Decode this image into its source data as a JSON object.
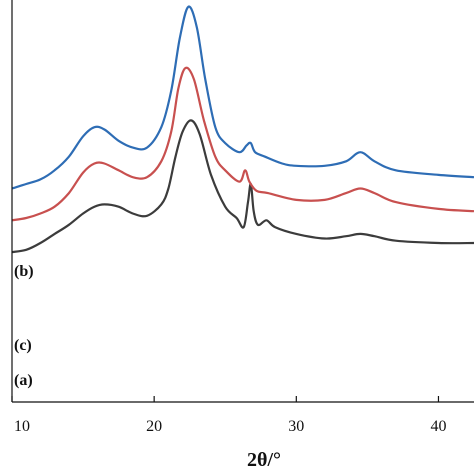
{
  "chart_data": {
    "type": "line",
    "title": "",
    "xlabel": "2θ/°",
    "ylabel": "",
    "xlim": [
      10,
      42.5
    ],
    "ylim": [
      0,
      100
    ],
    "x_ticks": [
      "10",
      "20",
      "30",
      "40"
    ],
    "grid": false,
    "legend": "none",
    "series": [
      {
        "name": "(a)",
        "color": "#3c3c3c",
        "points": [
          [
            10,
            2
          ],
          [
            11,
            3
          ],
          [
            12,
            6
          ],
          [
            13,
            10
          ],
          [
            14,
            14
          ],
          [
            15,
            19
          ],
          [
            15.8,
            22
          ],
          [
            16.5,
            23
          ],
          [
            17.5,
            22
          ],
          [
            18.5,
            19
          ],
          [
            19.5,
            18
          ],
          [
            20.5,
            23
          ],
          [
            21,
            30
          ],
          [
            21.5,
            44
          ],
          [
            22,
            55
          ],
          [
            22.6,
            60
          ],
          [
            23.2,
            54
          ],
          [
            24,
            36
          ],
          [
            25,
            22
          ],
          [
            25.8,
            17
          ],
          [
            26.3,
            13
          ],
          [
            26.6,
            24
          ],
          [
            26.8,
            32
          ],
          [
            27,
            20
          ],
          [
            27.3,
            14
          ],
          [
            27.9,
            16
          ],
          [
            28.5,
            13
          ],
          [
            30,
            10
          ],
          [
            32,
            8
          ],
          [
            33.5,
            9
          ],
          [
            34.5,
            10
          ],
          [
            35.5,
            9
          ],
          [
            37,
            7
          ],
          [
            40,
            6
          ],
          [
            42.5,
            6
          ]
        ]
      },
      {
        "name": "(b)",
        "color": "#2e6db5",
        "points": [
          [
            10,
            30
          ],
          [
            11,
            32
          ],
          [
            12,
            34
          ],
          [
            13,
            38
          ],
          [
            14,
            44
          ],
          [
            15,
            53
          ],
          [
            15.8,
            57
          ],
          [
            16.5,
            56
          ],
          [
            17.5,
            51
          ],
          [
            18.5,
            48
          ],
          [
            19.5,
            48
          ],
          [
            20.5,
            57
          ],
          [
            21.2,
            73
          ],
          [
            21.8,
            96
          ],
          [
            22.4,
            110
          ],
          [
            23,
            101
          ],
          [
            23.6,
            78
          ],
          [
            24.3,
            57
          ],
          [
            25,
            50
          ],
          [
            26,
            46
          ],
          [
            26.5,
            49
          ],
          [
            26.8,
            50
          ],
          [
            27.1,
            46
          ],
          [
            27.8,
            44
          ],
          [
            29,
            41
          ],
          [
            30,
            40
          ],
          [
            32,
            40
          ],
          [
            33.5,
            42
          ],
          [
            34.5,
            46
          ],
          [
            35.5,
            42
          ],
          [
            37,
            38
          ],
          [
            40,
            36
          ],
          [
            42.5,
            35
          ]
        ]
      },
      {
        "name": "(c)",
        "color": "#c8504f",
        "points": [
          [
            10,
            16
          ],
          [
            11,
            17
          ],
          [
            12,
            19
          ],
          [
            13,
            22
          ],
          [
            14,
            28
          ],
          [
            15,
            37
          ],
          [
            15.8,
            41
          ],
          [
            16.5,
            41
          ],
          [
            17.5,
            38
          ],
          [
            18.5,
            35
          ],
          [
            19.5,
            35
          ],
          [
            20.5,
            42
          ],
          [
            21.2,
            55
          ],
          [
            21.7,
            74
          ],
          [
            22.2,
            83
          ],
          [
            22.8,
            78
          ],
          [
            23.5,
            60
          ],
          [
            24.3,
            44
          ],
          [
            25,
            38
          ],
          [
            26,
            33
          ],
          [
            26.4,
            38
          ],
          [
            26.7,
            33
          ],
          [
            27.2,
            29
          ],
          [
            28,
            28
          ],
          [
            30,
            25
          ],
          [
            32,
            25
          ],
          [
            33.5,
            28
          ],
          [
            34.5,
            30
          ],
          [
            35.5,
            28
          ],
          [
            37,
            24
          ],
          [
            40,
            21
          ],
          [
            42.5,
            20
          ]
        ]
      }
    ]
  }
}
